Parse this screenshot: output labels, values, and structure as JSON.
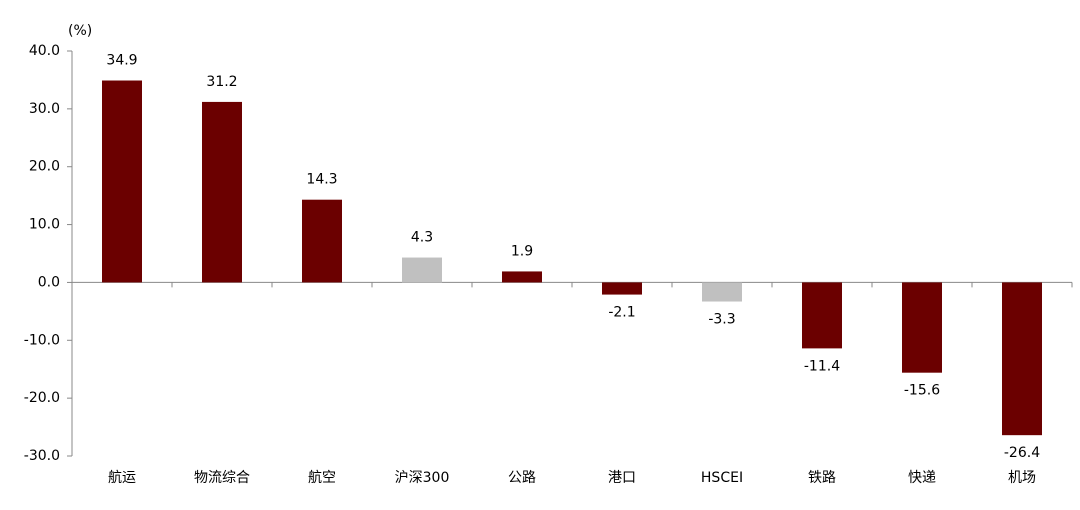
{
  "chart_data": {
    "type": "bar",
    "unit_label": "(%)",
    "categories": [
      "航运",
      "物流综合",
      "航空",
      "沪深300",
      "公路",
      "港口",
      "HSCEI",
      "铁路",
      "快递",
      "机场"
    ],
    "values": [
      34.9,
      31.2,
      14.3,
      4.3,
      1.9,
      -2.1,
      -3.3,
      -11.4,
      -15.6,
      -26.4
    ],
    "colors": [
      "#6b0000",
      "#6b0000",
      "#6b0000",
      "#c0c0c0",
      "#6b0000",
      "#6b0000",
      "#c0c0c0",
      "#6b0000",
      "#6b0000",
      "#6b0000"
    ],
    "ylim": [
      -30,
      40
    ],
    "yticks": [
      {
        "value": -30,
        "label": "-30.0"
      },
      {
        "value": -20,
        "label": "-20.0"
      },
      {
        "value": -10,
        "label": "-10.0"
      },
      {
        "value": 0,
        "label": "0.0"
      },
      {
        "value": 10,
        "label": "10.0"
      },
      {
        "value": 20,
        "label": "20.0"
      },
      {
        "value": 30,
        "label": "30.0"
      },
      {
        "value": 40,
        "label": "40.0"
      }
    ],
    "grid": false
  }
}
